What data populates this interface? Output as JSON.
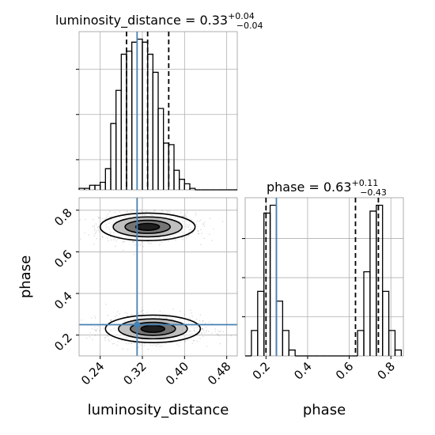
{
  "chart_data": [
    {
      "type": "histogram",
      "panel": "luminosity_distance marginal",
      "title": {
        "prefix": "luminosity_distance = 0.33",
        "sup": "+0.04",
        "sub": "−0.04"
      },
      "bin_edges": [
        0.2,
        0.21,
        0.22,
        0.23,
        0.24,
        0.25,
        0.26,
        0.27,
        0.28,
        0.29,
        0.3,
        0.31,
        0.32,
        0.33,
        0.34,
        0.35,
        0.36,
        0.37,
        0.38,
        0.39,
        0.4,
        0.41,
        0.42,
        0.43,
        0.44,
        0.45,
        0.46,
        0.47,
        0.48,
        0.49,
        0.5
      ],
      "counts": [
        1,
        1,
        3,
        3,
        5,
        14,
        44,
        66,
        90,
        92,
        98,
        100,
        98,
        90,
        78,
        54,
        31,
        30,
        13,
        7,
        4,
        1,
        0,
        0,
        0,
        0,
        0,
        0,
        0,
        0
      ],
      "xlim": [
        0.2,
        0.5
      ],
      "quantiles": [
        0.29,
        0.33,
        0.37
      ],
      "truth": 0.31
    },
    {
      "type": "heatmap",
      "panel": "luminosity_distance vs phase",
      "xlabel": "luminosity_distance",
      "ylabel": "phase",
      "xlim": [
        0.2,
        0.5
      ],
      "ylim": [
        0.1,
        0.86
      ],
      "x_ticks": [
        "0.24",
        "0.32",
        "0.40",
        "0.48"
      ],
      "y_ticks": [
        "0.2",
        "0.4",
        "0.6",
        "0.8"
      ],
      "modes": [
        {
          "x": 0.33,
          "y": 0.72,
          "sx": 0.045,
          "sy": 0.033
        },
        {
          "x": 0.34,
          "y": 0.23,
          "sx": 0.045,
          "sy": 0.033
        }
      ],
      "truth": {
        "x": 0.31,
        "y": 0.25
      }
    },
    {
      "type": "histogram",
      "panel": "phase marginal",
      "title": {
        "prefix": "phase = 0.63",
        "sup": "+0.11",
        "sub": "−0.43"
      },
      "xlabel": "phase",
      "x_ticks": [
        "0.2",
        "0.4",
        "0.6",
        "0.8"
      ],
      "xlim": [
        0.1,
        0.86
      ],
      "bin_edges": [
        0.1,
        0.13,
        0.16,
        0.19,
        0.22,
        0.25,
        0.28,
        0.31,
        0.34,
        0.37,
        0.4,
        0.43,
        0.46,
        0.49,
        0.52,
        0.55,
        0.58,
        0.61,
        0.64,
        0.67,
        0.7,
        0.73,
        0.76,
        0.79,
        0.82,
        0.85
      ],
      "counts": [
        0,
        13,
        33,
        73,
        77,
        28,
        13,
        3,
        0,
        0,
        0,
        0,
        0,
        0,
        0,
        0,
        0,
        0,
        13,
        43,
        74,
        77,
        33,
        13,
        3
      ],
      "quantiles": [
        0.2,
        0.63,
        0.74
      ],
      "truth": 0.25
    }
  ]
}
